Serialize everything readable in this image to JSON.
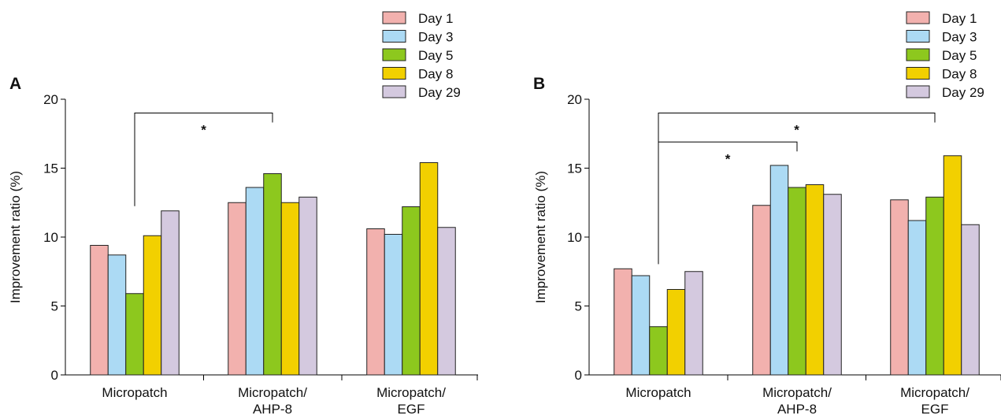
{
  "chart_data": [
    {
      "type": "bar",
      "panel": "A",
      "ylabel": "Improvement ratio (%)",
      "ylim": [
        0,
        20
      ],
      "yticks": [
        0,
        5,
        10,
        15,
        20
      ],
      "categories": [
        [
          "Micropatch"
        ],
        [
          "Micropatch/",
          "AHP-8"
        ],
        [
          "Micropatch/",
          "EGF"
        ]
      ],
      "series": [
        {
          "name": "Day 1",
          "color": "#f2b1ae",
          "values": [
            9.4,
            12.5,
            10.6
          ]
        },
        {
          "name": "Day 3",
          "color": "#acdaf4",
          "values": [
            8.7,
            13.6,
            10.2
          ]
        },
        {
          "name": "Day 5",
          "color": "#8dc81e",
          "values": [
            5.9,
            14.6,
            12.2
          ]
        },
        {
          "name": "Day 8",
          "color": "#f2d000",
          "values": [
            10.1,
            12.5,
            15.4
          ]
        },
        {
          "name": "Day 29",
          "color": "#d4c9df",
          "values": [
            11.9,
            12.9,
            10.7
          ]
        }
      ],
      "legend_position": "top-right",
      "significance": [
        {
          "from_category": 0,
          "to_category": 1,
          "label": "*",
          "level": 19.0
        }
      ]
    },
    {
      "type": "bar",
      "panel": "B",
      "ylabel": "Improvement ratio (%)",
      "ylim": [
        0,
        20
      ],
      "yticks": [
        0,
        5,
        10,
        15,
        20
      ],
      "categories": [
        [
          "Micropatch"
        ],
        [
          "Micropatch/",
          "AHP-8"
        ],
        [
          "Micropatch/",
          "EGF"
        ]
      ],
      "series": [
        {
          "name": "Day 1",
          "color": "#f2b1ae",
          "values": [
            7.7,
            12.3,
            12.7
          ]
        },
        {
          "name": "Day 3",
          "color": "#acdaf4",
          "values": [
            7.2,
            15.2,
            11.2
          ]
        },
        {
          "name": "Day 5",
          "color": "#8dc81e",
          "values": [
            3.5,
            13.6,
            12.9
          ]
        },
        {
          "name": "Day 8",
          "color": "#f2d000",
          "values": [
            6.2,
            13.8,
            15.9
          ]
        },
        {
          "name": "Day 29",
          "color": "#d4c9df",
          "values": [
            7.5,
            13.1,
            10.9
          ]
        }
      ],
      "legend_position": "top-right",
      "significance": [
        {
          "from_category": 0,
          "to_category": 2,
          "label": "*",
          "level": 19.0
        },
        {
          "from_category": 0,
          "to_category": 1,
          "label": "*",
          "level": 16.9
        }
      ]
    }
  ]
}
